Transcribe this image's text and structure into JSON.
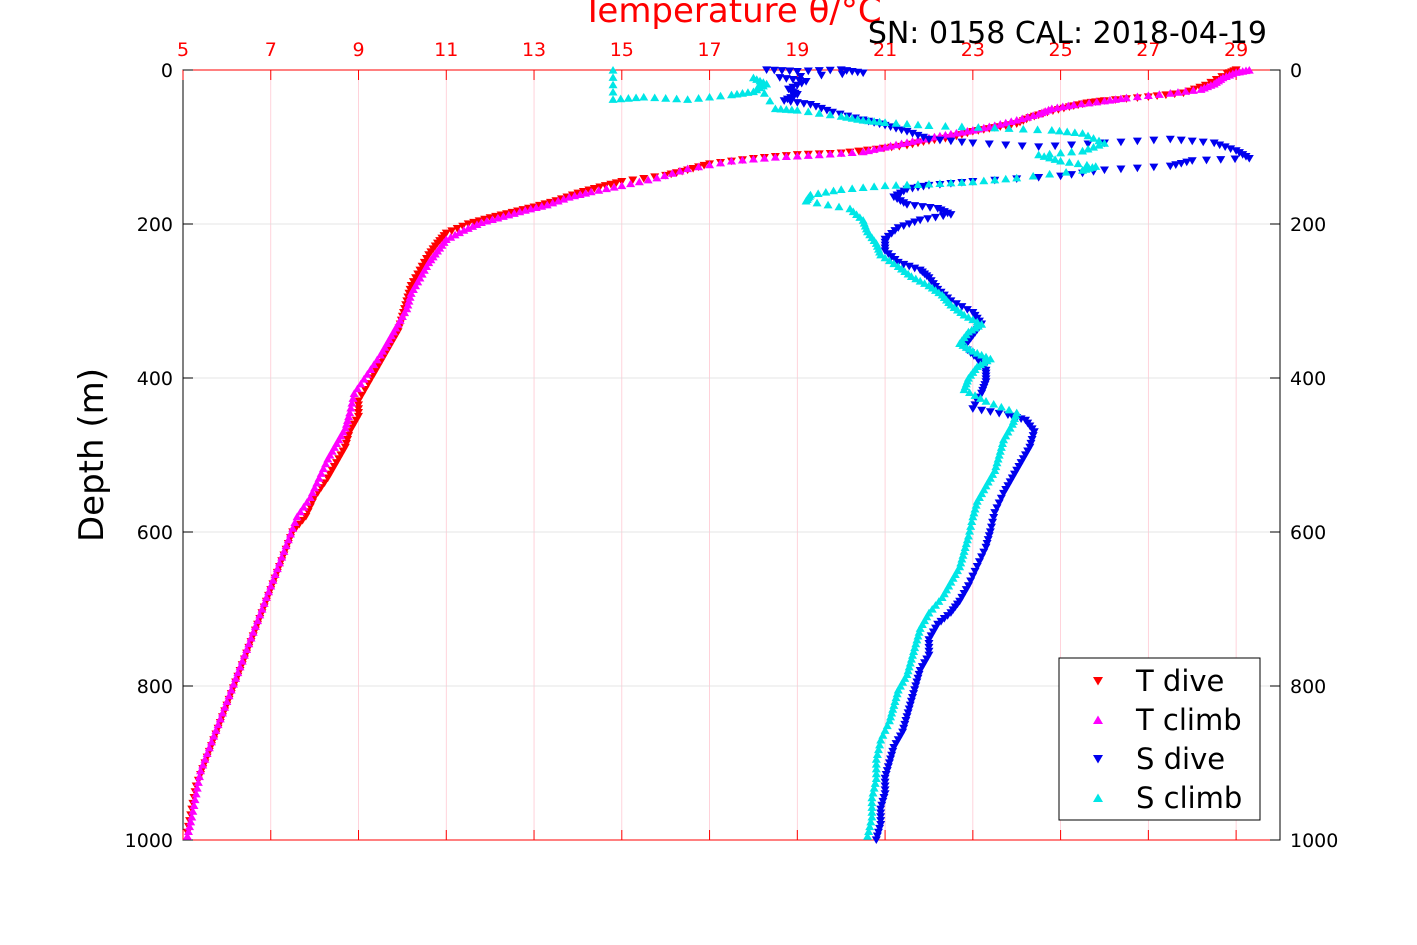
{
  "chart_data": {
    "type": "scatter",
    "title": "Temperature θ/°C",
    "subtitle": "SN: 0158  CAL: 2018-04-19",
    "ylabel": "Depth (m)",
    "xlabel_top": "Temperature θ/°C",
    "xlim": [
      5,
      30
    ],
    "ylim": [
      0,
      1000
    ],
    "y_reversed": true,
    "grid": true,
    "x_ticks": [
      "5",
      "7",
      "9",
      "11",
      "13",
      "15",
      "17",
      "19",
      "21",
      "23",
      "25",
      "27",
      "29"
    ],
    "x_tick_values": [
      5,
      7,
      9,
      11,
      13,
      15,
      17,
      19,
      21,
      23,
      25,
      27,
      29
    ],
    "y_ticks": [
      "0",
      "200",
      "400",
      "600",
      "800",
      "1000"
    ],
    "y_tick_values": [
      0,
      200,
      400,
      600,
      800,
      1000
    ],
    "legend_position": "bottom-right",
    "series": [
      {
        "name": "T dive",
        "marker": "triangle-down",
        "color": "#ff0000",
        "points": [
          [
            29.0,
            0
          ],
          [
            28.8,
            5
          ],
          [
            28.3,
            20
          ],
          [
            27.8,
            30
          ],
          [
            27.0,
            35
          ],
          [
            26.0,
            40
          ],
          [
            25.6,
            43
          ],
          [
            25.2,
            48
          ],
          [
            24.7,
            55
          ],
          [
            24.3,
            62
          ],
          [
            24.0,
            70
          ],
          [
            23.5,
            75
          ],
          [
            23.0,
            80
          ],
          [
            22.5,
            88
          ],
          [
            22.0,
            92
          ],
          [
            21.5,
            98
          ],
          [
            20.8,
            103
          ],
          [
            20.0,
            108
          ],
          [
            19.0,
            110
          ],
          [
            18.0,
            115
          ],
          [
            17.0,
            122
          ],
          [
            16.5,
            130
          ],
          [
            16.0,
            137
          ],
          [
            15.0,
            145
          ],
          [
            14.5,
            152
          ],
          [
            14.0,
            160
          ],
          [
            13.5,
            170
          ],
          [
            13.0,
            178
          ],
          [
            12.5,
            185
          ],
          [
            12.0,
            192
          ],
          [
            11.5,
            200
          ],
          [
            11.0,
            212
          ],
          [
            10.8,
            225
          ],
          [
            10.6,
            240
          ],
          [
            10.4,
            260
          ],
          [
            10.2,
            280
          ],
          [
            10.1,
            300
          ],
          [
            10.0,
            320
          ],
          [
            9.9,
            340
          ],
          [
            9.7,
            360
          ],
          [
            9.5,
            380
          ],
          [
            9.3,
            400
          ],
          [
            9.0,
            430
          ],
          [
            9.0,
            450
          ],
          [
            8.8,
            470
          ],
          [
            8.7,
            490
          ],
          [
            8.5,
            510
          ],
          [
            8.3,
            530
          ],
          [
            8.0,
            555
          ],
          [
            7.8,
            580
          ],
          [
            7.5,
            600
          ],
          [
            7.3,
            630
          ],
          [
            7.1,
            660
          ],
          [
            6.9,
            690
          ],
          [
            6.7,
            720
          ],
          [
            6.5,
            750
          ],
          [
            6.3,
            780
          ],
          [
            6.1,
            810
          ],
          [
            5.9,
            840
          ],
          [
            5.7,
            870
          ],
          [
            5.5,
            900
          ],
          [
            5.3,
            930
          ],
          [
            5.2,
            960
          ],
          [
            5.1,
            990
          ]
        ]
      },
      {
        "name": "T climb",
        "marker": "triangle-up",
        "color": "#ff00ff",
        "points": [
          [
            29.3,
            0
          ],
          [
            29.0,
            3
          ],
          [
            28.7,
            10
          ],
          [
            28.5,
            18
          ],
          [
            28.2,
            25
          ],
          [
            27.5,
            30
          ],
          [
            26.5,
            36
          ],
          [
            26.0,
            40
          ],
          [
            25.3,
            45
          ],
          [
            24.8,
            50
          ],
          [
            24.5,
            57
          ],
          [
            24.0,
            65
          ],
          [
            23.5,
            72
          ],
          [
            23.0,
            78
          ],
          [
            22.5,
            83
          ],
          [
            22.0,
            88
          ],
          [
            21.5,
            94
          ],
          [
            21.0,
            100
          ],
          [
            20.5,
            106
          ],
          [
            19.5,
            110
          ],
          [
            18.5,
            113
          ],
          [
            17.5,
            118
          ],
          [
            16.5,
            128
          ],
          [
            15.8,
            140
          ],
          [
            15.0,
            150
          ],
          [
            14.3,
            158
          ],
          [
            13.8,
            165
          ],
          [
            13.3,
            175
          ],
          [
            12.8,
            182
          ],
          [
            12.3,
            190
          ],
          [
            11.8,
            198
          ],
          [
            11.4,
            208
          ],
          [
            11.0,
            220
          ],
          [
            10.8,
            235
          ],
          [
            10.6,
            250
          ],
          [
            10.4,
            270
          ],
          [
            10.2,
            290
          ],
          [
            10.1,
            310
          ],
          [
            9.9,
            330
          ],
          [
            9.7,
            350
          ],
          [
            9.5,
            370
          ],
          [
            9.2,
            395
          ],
          [
            8.9,
            420
          ],
          [
            8.8,
            445
          ],
          [
            8.7,
            465
          ],
          [
            8.5,
            485
          ],
          [
            8.3,
            505
          ],
          [
            8.1,
            530
          ],
          [
            7.9,
            555
          ],
          [
            7.6,
            580
          ],
          [
            7.4,
            610
          ],
          [
            7.2,
            640
          ],
          [
            7.0,
            670
          ],
          [
            6.8,
            700
          ],
          [
            6.6,
            730
          ],
          [
            6.4,
            760
          ],
          [
            6.2,
            790
          ],
          [
            6.0,
            820
          ],
          [
            5.8,
            850
          ],
          [
            5.6,
            880
          ],
          [
            5.4,
            910
          ],
          [
            5.3,
            940
          ],
          [
            5.2,
            970
          ],
          [
            5.1,
            995
          ]
        ]
      },
      {
        "name": "S dive",
        "marker": "triangle-down",
        "color": "#0000ee",
        "points": [
          [
            18.3,
            0
          ],
          [
            19.0,
            2
          ],
          [
            20.0,
            0
          ],
          [
            20.5,
            4
          ],
          [
            18.6,
            10
          ],
          [
            19.2,
            15
          ],
          [
            18.8,
            25
          ],
          [
            19.0,
            32
          ],
          [
            18.7,
            40
          ],
          [
            19.3,
            45
          ],
          [
            19.8,
            55
          ],
          [
            20.5,
            65
          ],
          [
            21.0,
            72
          ],
          [
            21.5,
            80
          ],
          [
            22.0,
            90
          ],
          [
            23.0,
            95
          ],
          [
            24.5,
            100
          ],
          [
            26.0,
            95
          ],
          [
            27.5,
            90
          ],
          [
            28.5,
            95
          ],
          [
            29.0,
            105
          ],
          [
            29.3,
            115
          ],
          [
            28.0,
            118
          ],
          [
            27.5,
            125
          ],
          [
            26.0,
            130
          ],
          [
            25.0,
            138
          ],
          [
            23.0,
            145
          ],
          [
            22.0,
            150
          ],
          [
            21.5,
            155
          ],
          [
            21.2,
            165
          ],
          [
            21.5,
            175
          ],
          [
            22.2,
            180
          ],
          [
            22.5,
            188
          ],
          [
            21.8,
            195
          ],
          [
            21.3,
            205
          ],
          [
            21.0,
            220
          ],
          [
            21.0,
            235
          ],
          [
            21.3,
            250
          ],
          [
            21.8,
            260
          ],
          [
            22.0,
            270
          ],
          [
            22.2,
            285
          ],
          [
            22.5,
            300
          ],
          [
            23.0,
            315
          ],
          [
            23.2,
            330
          ],
          [
            23.0,
            345
          ],
          [
            22.8,
            360
          ],
          [
            23.1,
            375
          ],
          [
            23.3,
            390
          ],
          [
            23.3,
            405
          ],
          [
            23.2,
            420
          ],
          [
            23.0,
            440
          ],
          [
            23.8,
            448
          ],
          [
            24.2,
            455
          ],
          [
            24.4,
            470
          ],
          [
            24.3,
            490
          ],
          [
            24.1,
            510
          ],
          [
            23.9,
            530
          ],
          [
            23.7,
            550
          ],
          [
            23.5,
            575
          ],
          [
            23.4,
            600
          ],
          [
            23.3,
            620
          ],
          [
            23.1,
            645
          ],
          [
            22.9,
            670
          ],
          [
            22.7,
            690
          ],
          [
            22.5,
            705
          ],
          [
            22.2,
            720
          ],
          [
            22.0,
            740
          ],
          [
            22.0,
            760
          ],
          [
            21.8,
            780
          ],
          [
            21.7,
            800
          ],
          [
            21.6,
            820
          ],
          [
            21.5,
            840
          ],
          [
            21.4,
            860
          ],
          [
            21.2,
            880
          ],
          [
            21.1,
            900
          ],
          [
            21.0,
            920
          ],
          [
            21.0,
            940
          ],
          [
            20.9,
            960
          ],
          [
            20.9,
            980
          ],
          [
            20.8,
            1000
          ]
        ]
      },
      {
        "name": "S climb",
        "marker": "triangle-up",
        "color": "#00e6e6",
        "points": [
          [
            14.8,
            0
          ],
          [
            14.8,
            38
          ],
          [
            15.5,
            35
          ],
          [
            16.5,
            38
          ],
          [
            17.5,
            32
          ],
          [
            18.0,
            28
          ],
          [
            18.3,
            18
          ],
          [
            18.0,
            10
          ],
          [
            18.5,
            50
          ],
          [
            19.0,
            52
          ],
          [
            20.0,
            60
          ],
          [
            20.5,
            65
          ],
          [
            21.0,
            68
          ],
          [
            22.0,
            72
          ],
          [
            23.5,
            75
          ],
          [
            24.8,
            78
          ],
          [
            25.5,
            82
          ],
          [
            26.0,
            95
          ],
          [
            25.5,
            105
          ],
          [
            24.5,
            110
          ],
          [
            25.0,
            118
          ],
          [
            25.8,
            125
          ],
          [
            25.5,
            130
          ],
          [
            24.0,
            140
          ],
          [
            23.0,
            145
          ],
          [
            22.0,
            148
          ],
          [
            21.0,
            150
          ],
          [
            20.0,
            155
          ],
          [
            19.3,
            162
          ],
          [
            19.2,
            170
          ],
          [
            20.2,
            180
          ],
          [
            20.5,
            195
          ],
          [
            20.6,
            210
          ],
          [
            20.8,
            225
          ],
          [
            20.9,
            240
          ],
          [
            21.3,
            255
          ],
          [
            21.6,
            268
          ],
          [
            22.0,
            280
          ],
          [
            22.3,
            292
          ],
          [
            22.5,
            305
          ],
          [
            22.8,
            318
          ],
          [
            23.2,
            330
          ],
          [
            22.9,
            340
          ],
          [
            22.7,
            355
          ],
          [
            23.0,
            365
          ],
          [
            23.4,
            375
          ],
          [
            23.1,
            385
          ],
          [
            22.9,
            400
          ],
          [
            22.8,
            415
          ],
          [
            23.3,
            430
          ],
          [
            24.0,
            445
          ],
          [
            23.9,
            460
          ],
          [
            23.7,
            480
          ],
          [
            23.6,
            500
          ],
          [
            23.5,
            520
          ],
          [
            23.3,
            540
          ],
          [
            23.1,
            560
          ],
          [
            23.0,
            580
          ],
          [
            22.9,
            605
          ],
          [
            22.8,
            625
          ],
          [
            22.7,
            645
          ],
          [
            22.5,
            665
          ],
          [
            22.3,
            685
          ],
          [
            22.0,
            705
          ],
          [
            21.8,
            725
          ],
          [
            21.7,
            745
          ],
          [
            21.6,
            765
          ],
          [
            21.5,
            785
          ],
          [
            21.3,
            805
          ],
          [
            21.2,
            825
          ],
          [
            21.1,
            845
          ],
          [
            20.9,
            870
          ],
          [
            20.8,
            895
          ],
          [
            20.8,
            920
          ],
          [
            20.7,
            945
          ],
          [
            20.7,
            970
          ],
          [
            20.6,
            995
          ]
        ]
      }
    ]
  }
}
